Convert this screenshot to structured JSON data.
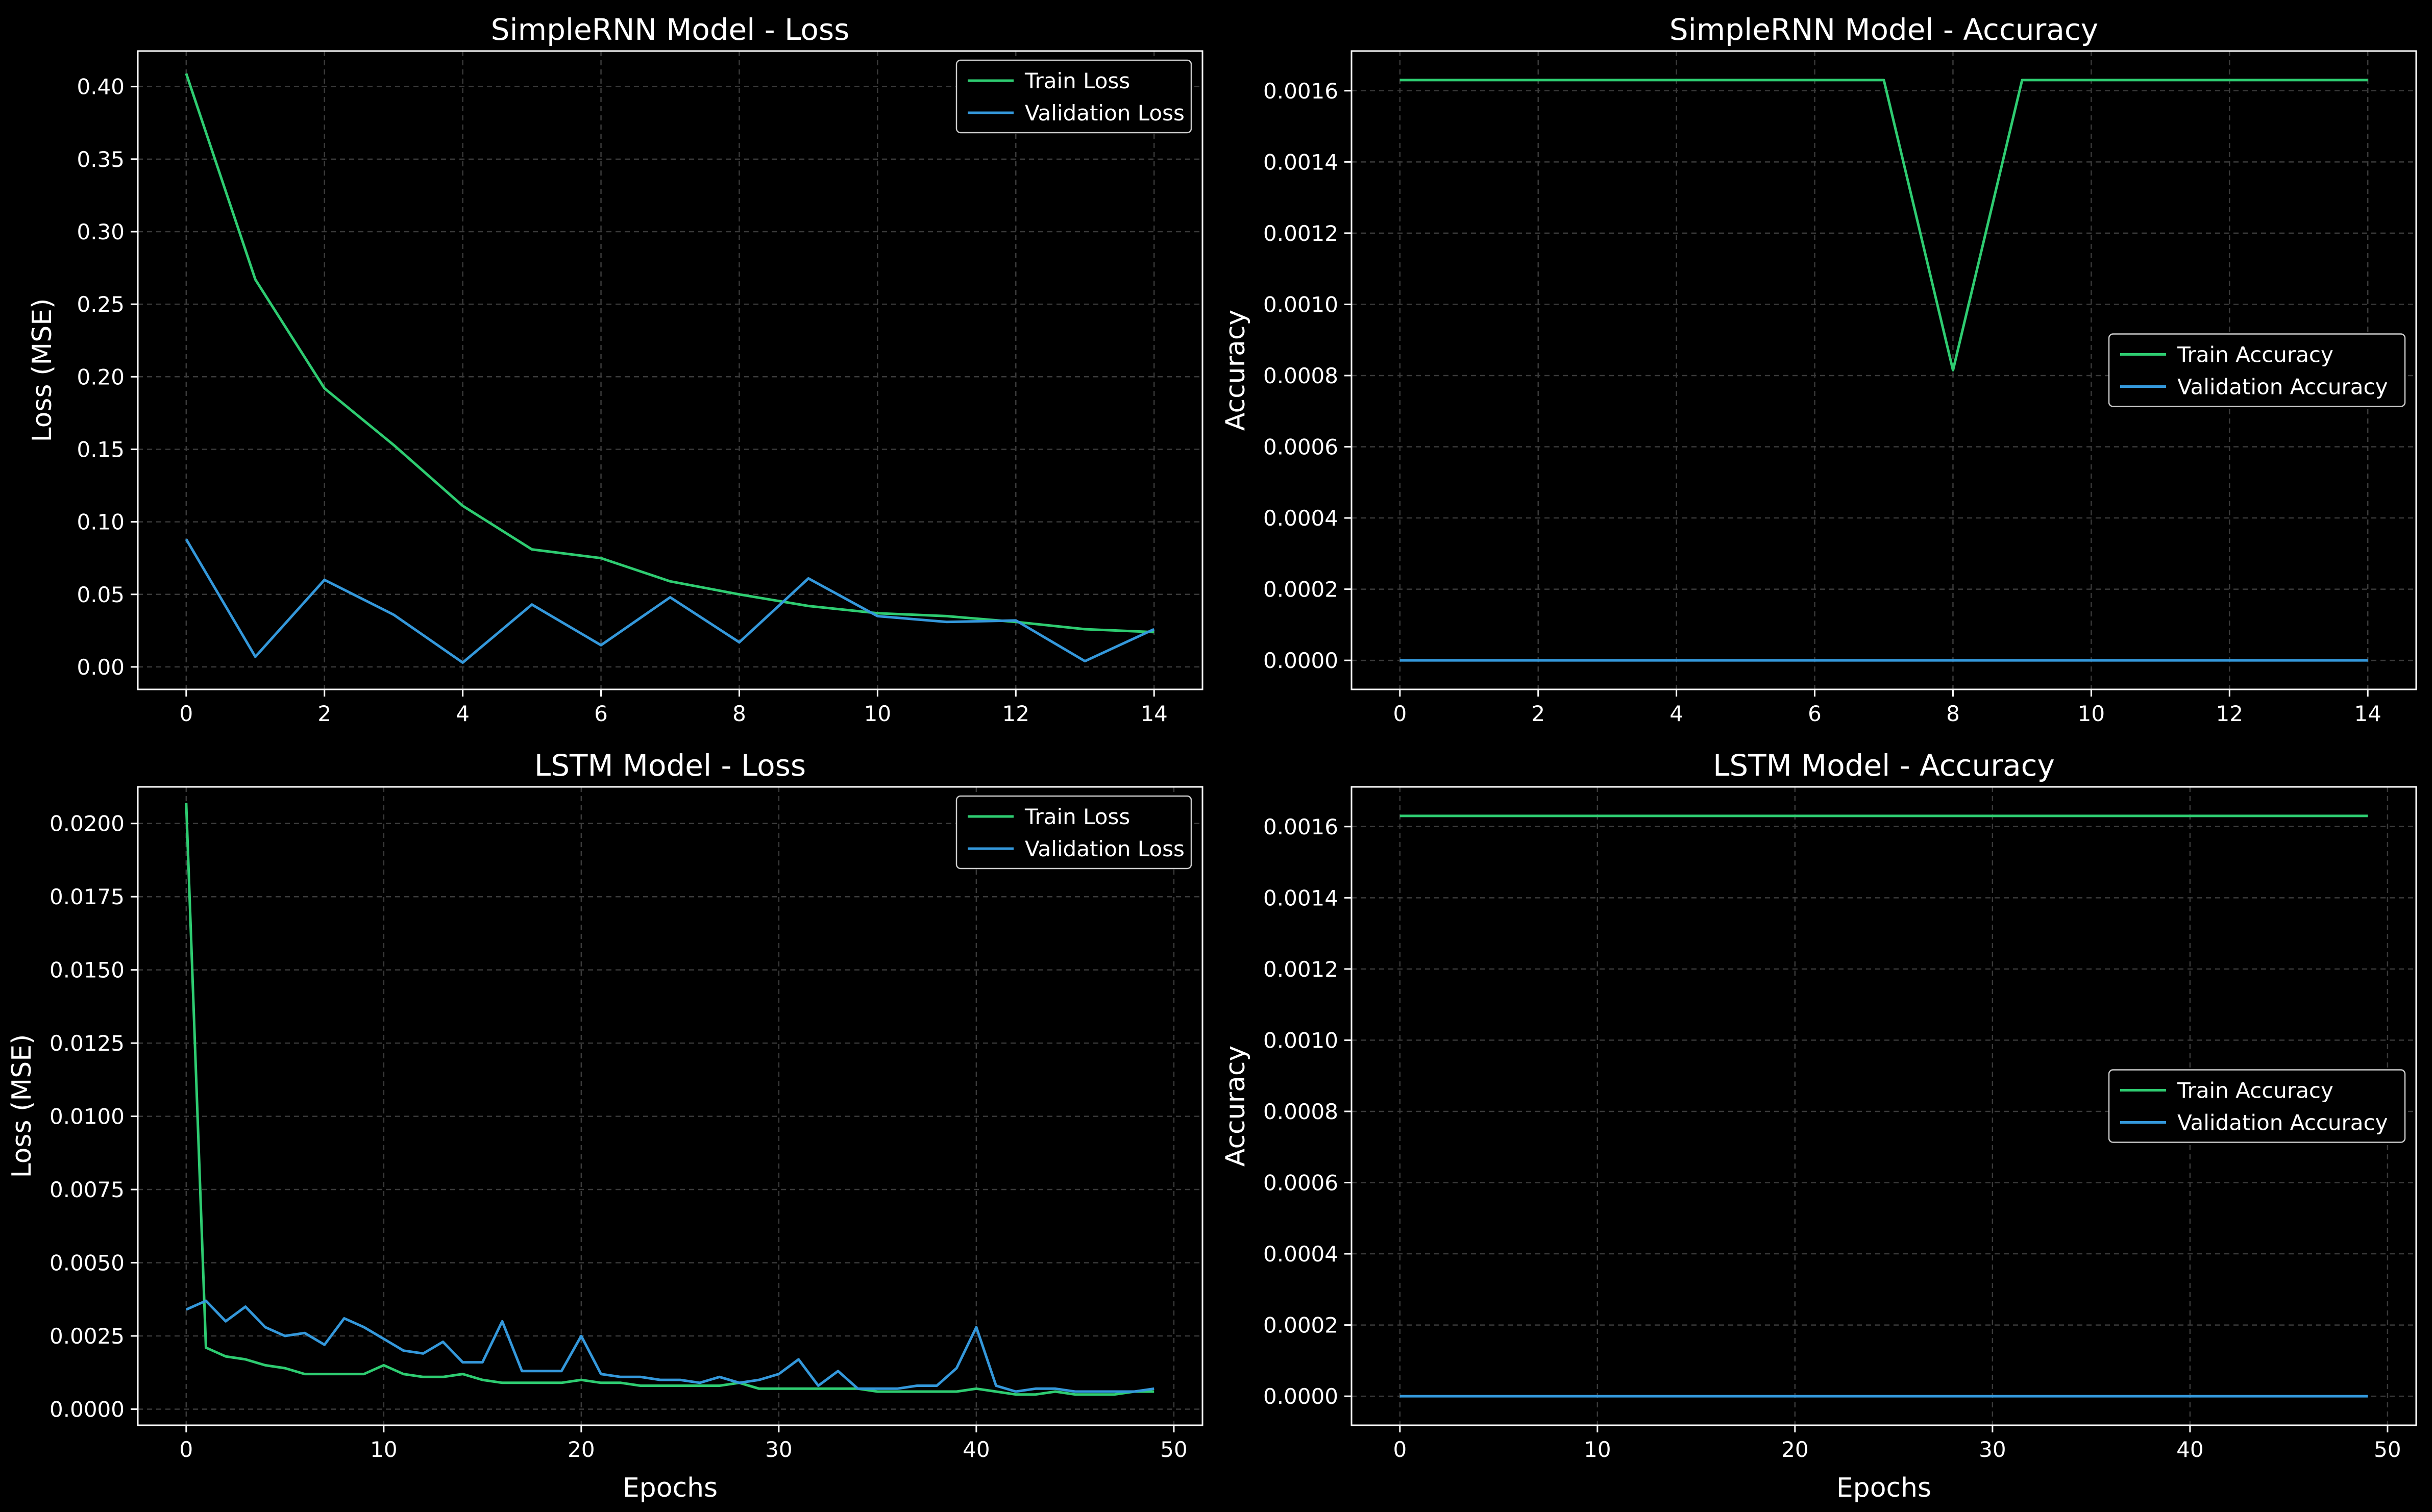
{
  "figure": {
    "background": "#000000",
    "text_color": "#ffffff",
    "grid_color": "#3a3a3a"
  },
  "chart_data": [
    {
      "id": "rnn-loss",
      "type": "line",
      "title": "SimpleRNN Model - Loss",
      "xlabel": "",
      "ylabel": "Loss (MSE)",
      "xlim": [
        -0.7,
        14.7
      ],
      "ylim": [
        -0.0155,
        0.4245
      ],
      "xticks": [
        0,
        2,
        4,
        6,
        8,
        10,
        12,
        14
      ],
      "xtick_labels": [
        "0",
        "2",
        "4",
        "6",
        "8",
        "10",
        "12",
        "14"
      ],
      "yticks": [
        0,
        0.05,
        0.1,
        0.15,
        0.2,
        0.25,
        0.3,
        0.35,
        0.4
      ],
      "ytick_labels": [
        "0.00",
        "0.05",
        "0.10",
        "0.15",
        "0.20",
        "0.25",
        "0.30",
        "0.35",
        "0.40"
      ],
      "grid": true,
      "legend_position": "upper right",
      "x": [
        0,
        1,
        2,
        3,
        4,
        5,
        6,
        7,
        8,
        9,
        10,
        11,
        12,
        13,
        14
      ],
      "series": [
        {
          "name": "Train Loss",
          "color": "#2ecc71",
          "values": [
            0.409,
            0.267,
            0.192,
            0.153,
            0.111,
            0.081,
            0.075,
            0.059,
            0.05,
            0.042,
            0.037,
            0.035,
            0.031,
            0.026,
            0.024
          ]
        },
        {
          "name": "Validation Loss",
          "color": "#3498db",
          "values": [
            0.088,
            0.007,
            0.06,
            0.036,
            0.003,
            0.043,
            0.015,
            0.048,
            0.017,
            0.061,
            0.035,
            0.031,
            0.032,
            0.004,
            0.026
          ]
        }
      ]
    },
    {
      "id": "rnn-acc",
      "type": "line",
      "title": "SimpleRNN Model - Accuracy",
      "xlabel": "",
      "ylabel": "Accuracy",
      "xlim": [
        -0.7,
        14.7
      ],
      "ylim": [
        -8.15e-05,
        0.0017115
      ],
      "xticks": [
        0,
        2,
        4,
        6,
        8,
        10,
        12,
        14
      ],
      "xtick_labels": [
        "0",
        "2",
        "4",
        "6",
        "8",
        "10",
        "12",
        "14"
      ],
      "yticks": [
        0,
        0.0002,
        0.0004,
        0.0006,
        0.0008,
        0.001,
        0.0012,
        0.0014,
        0.0016
      ],
      "ytick_labels": [
        "0.0000",
        "0.0002",
        "0.0004",
        "0.0006",
        "0.0008",
        "0.0010",
        "0.0012",
        "0.0014",
        "0.0016"
      ],
      "grid": true,
      "legend_position": "center right",
      "x": [
        0,
        1,
        2,
        3,
        4,
        5,
        6,
        7,
        8,
        9,
        10,
        11,
        12,
        13,
        14
      ],
      "series": [
        {
          "name": "Train Accuracy",
          "color": "#2ecc71",
          "values": [
            0.00163,
            0.00163,
            0.00163,
            0.00163,
            0.00163,
            0.00163,
            0.00163,
            0.00163,
            0.000815,
            0.00163,
            0.00163,
            0.00163,
            0.00163,
            0.00163,
            0.00163
          ]
        },
        {
          "name": "Validation Accuracy",
          "color": "#3498db",
          "values": [
            0,
            0,
            0,
            0,
            0,
            0,
            0,
            0,
            0,
            0,
            0,
            0,
            0,
            0,
            0
          ]
        }
      ]
    },
    {
      "id": "lstm-loss",
      "type": "line",
      "title": "LSTM Model - Loss",
      "xlabel": "Epochs",
      "ylabel": "Loss (MSE)",
      "xlim": [
        -2.45,
        51.45
      ],
      "ylim": [
        -0.00055,
        0.02125
      ],
      "xticks": [
        0,
        10,
        20,
        30,
        40,
        50
      ],
      "xtick_labels": [
        "0",
        "10",
        "20",
        "30",
        "40",
        "50"
      ],
      "yticks": [
        0,
        0.0025,
        0.005,
        0.0075,
        0.01,
        0.0125,
        0.015,
        0.0175,
        0.02
      ],
      "ytick_labels": [
        "0.0000",
        "0.0025",
        "0.0050",
        "0.0075",
        "0.0100",
        "0.0125",
        "0.0150",
        "0.0175",
        "0.0200"
      ],
      "grid": true,
      "legend_position": "upper right",
      "x": [
        0,
        1,
        2,
        3,
        4,
        5,
        6,
        7,
        8,
        9,
        10,
        11,
        12,
        13,
        14,
        15,
        16,
        17,
        18,
        19,
        20,
        21,
        22,
        23,
        24,
        25,
        26,
        27,
        28,
        29,
        30,
        31,
        32,
        33,
        34,
        35,
        36,
        37,
        38,
        39,
        40,
        41,
        42,
        43,
        44,
        45,
        46,
        47,
        48,
        49
      ],
      "series": [
        {
          "name": "Train Loss",
          "color": "#2ecc71",
          "values": [
            0.0207,
            0.0021,
            0.0018,
            0.0017,
            0.0015,
            0.0014,
            0.0012,
            0.0012,
            0.0012,
            0.0012,
            0.0015,
            0.0012,
            0.0011,
            0.0011,
            0.0012,
            0.001,
            0.0009,
            0.0009,
            0.0009,
            0.0009,
            0.001,
            0.0009,
            0.0009,
            0.0008,
            0.0008,
            0.0008,
            0.0008,
            0.0008,
            0.0009,
            0.0007,
            0.0007,
            0.0007,
            0.0007,
            0.0007,
            0.0007,
            0.0006,
            0.0006,
            0.0006,
            0.0006,
            0.0006,
            0.0007,
            0.0006,
            0.0005,
            0.0005,
            0.0006,
            0.0005,
            0.0005,
            0.0005,
            0.0006,
            0.0006
          ]
        },
        {
          "name": "Validation Loss",
          "color": "#3498db",
          "values": [
            0.0034,
            0.0037,
            0.003,
            0.0035,
            0.0028,
            0.0025,
            0.0026,
            0.0022,
            0.0031,
            0.0028,
            0.0024,
            0.002,
            0.0019,
            0.0023,
            0.0016,
            0.0016,
            0.003,
            0.0013,
            0.0013,
            0.0013,
            0.0025,
            0.0012,
            0.0011,
            0.0011,
            0.001,
            0.001,
            0.0009,
            0.0011,
            0.0009,
            0.001,
            0.0012,
            0.0017,
            0.0008,
            0.0013,
            0.0007,
            0.0007,
            0.0007,
            0.0008,
            0.0008,
            0.0014,
            0.0028,
            0.0008,
            0.0006,
            0.0007,
            0.0007,
            0.0006,
            0.0006,
            0.0006,
            0.0006,
            0.0007
          ]
        }
      ]
    },
    {
      "id": "lstm-acc",
      "type": "line",
      "title": "LSTM Model - Accuracy",
      "xlabel": "Epochs",
      "ylabel": "Accuracy",
      "xlim": [
        -2.45,
        51.45
      ],
      "ylim": [
        -8.15e-05,
        0.0017115
      ],
      "xticks": [
        0,
        10,
        20,
        30,
        40,
        50
      ],
      "xtick_labels": [
        "0",
        "10",
        "20",
        "30",
        "40",
        "50"
      ],
      "yticks": [
        0,
        0.0002,
        0.0004,
        0.0006,
        0.0008,
        0.001,
        0.0012,
        0.0014,
        0.0016
      ],
      "ytick_labels": [
        "0.0000",
        "0.0002",
        "0.0004",
        "0.0006",
        "0.0008",
        "0.0010",
        "0.0012",
        "0.0014",
        "0.0016"
      ],
      "grid": true,
      "legend_position": "center right",
      "x": [
        0,
        49
      ],
      "series": [
        {
          "name": "Train Accuracy",
          "color": "#2ecc71",
          "values": [
            0.00163,
            0.00163
          ]
        },
        {
          "name": "Validation Accuracy",
          "color": "#3498db",
          "values": [
            0,
            0
          ]
        }
      ]
    }
  ]
}
